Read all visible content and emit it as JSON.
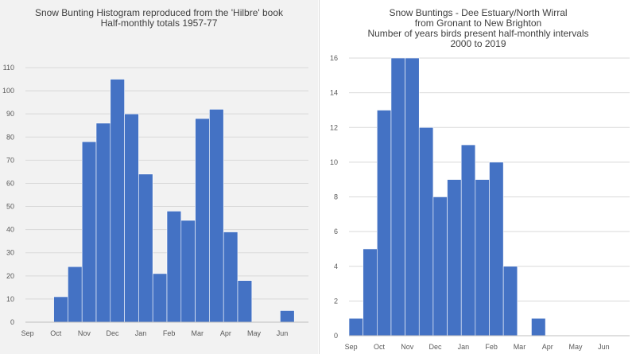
{
  "chart_data": [
    {
      "type": "bar",
      "title": "Snow Bunting Histogram reproduced from the 'Hilbre' book",
      "subtitle": "Half-monthly totals 1957-77",
      "month_labels": [
        "Sep",
        "Oct",
        "Nov",
        "Dec",
        "Jan",
        "Feb",
        "Mar",
        "Apr",
        "May",
        "Jun"
      ],
      "categories": [
        "Sep 1",
        "Sep 2",
        "Oct 1",
        "Oct 2",
        "Nov 1",
        "Nov 2",
        "Dec 1",
        "Dec 2",
        "Jan 1",
        "Jan 2",
        "Feb 1",
        "Feb 2",
        "Mar 1",
        "Mar 2",
        "Apr 1",
        "Apr 2",
        "May 1",
        "May 2",
        "Jun 1",
        "Jun 2"
      ],
      "values": [
        0,
        0,
        11,
        24,
        78,
        86,
        105,
        90,
        64,
        21,
        48,
        44,
        88,
        92,
        39,
        18,
        0,
        0,
        5,
        0
      ],
      "ylim": [
        0,
        110
      ],
      "yticks": [
        0,
        10,
        20,
        30,
        40,
        50,
        60,
        70,
        80,
        90,
        100,
        110
      ],
      "grid": true,
      "bar_color": "#4472c4"
    },
    {
      "type": "bar",
      "title": "Snow Buntings - Dee Estuary/North Wirral",
      "subtitle_lines": [
        "from Gronant to New Brighton",
        "Number  of years birds present half-monthly intervals",
        "2000 to 2019"
      ],
      "month_labels": [
        "Sep",
        "Oct",
        "Nov",
        "Dec",
        "Jan",
        "Feb",
        "Mar",
        "Apr",
        "May",
        "Jun"
      ],
      "categories": [
        "Sep 1",
        "Sep 2",
        "Oct 1",
        "Oct 2",
        "Nov 1",
        "Nov 2",
        "Dec 1",
        "Dec 2",
        "Jan 1",
        "Jan 2",
        "Feb 1",
        "Feb 2",
        "Mar 1",
        "Mar 2",
        "Apr 1",
        "Apr 2",
        "May 1",
        "May 2",
        "Jun 1",
        "Jun 2"
      ],
      "values": [
        1,
        5,
        13,
        16,
        16,
        12,
        8,
        9,
        11,
        9,
        10,
        4,
        0,
        1,
        0,
        0,
        0,
        0,
        0,
        0
      ],
      "ylim": [
        0,
        16
      ],
      "yticks": [
        0,
        2,
        4,
        6,
        8,
        10,
        12,
        14,
        16
      ],
      "grid": true,
      "bar_color": "#4472c4"
    }
  ]
}
